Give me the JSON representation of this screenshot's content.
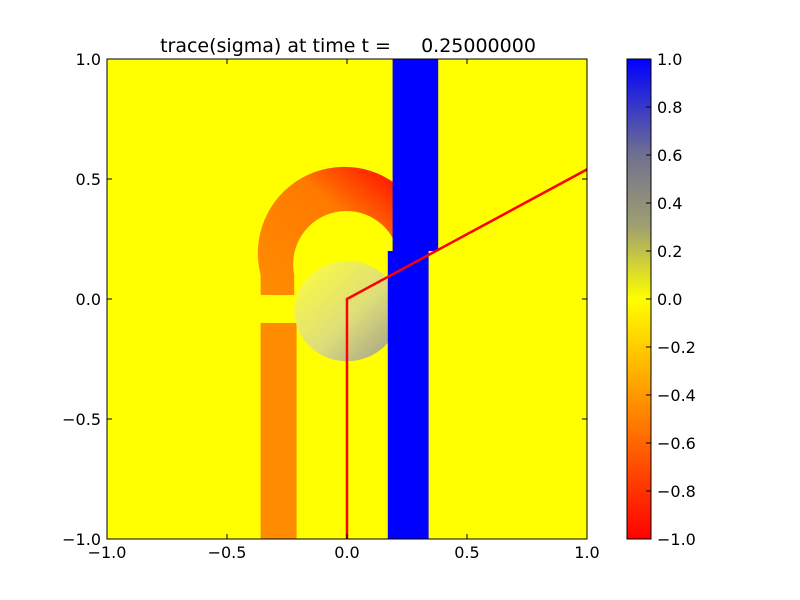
{
  "chart_data": {
    "type": "heatmap",
    "title": "trace(sigma) at time t =     0.25000000",
    "xlabel": "",
    "ylabel": "",
    "xlim": [
      -1.0,
      1.0
    ],
    "ylim": [
      -1.0,
      1.0
    ],
    "x_ticks": [
      "−1.0",
      "−0.5",
      "0.0",
      "0.5",
      "1.0"
    ],
    "x_tick_values": [
      -1.0,
      -0.5,
      0.0,
      0.5,
      1.0
    ],
    "y_ticks": [
      "−1.0",
      "−0.5",
      "0.0",
      "0.5",
      "1.0"
    ],
    "y_tick_values": [
      -1.0,
      -0.5,
      0.0,
      0.5,
      1.0
    ],
    "grid": false,
    "background_value": 0.0,
    "regions": [
      {
        "shape": "vertical-band",
        "value": 1.0,
        "x_range": [
          0.19,
          0.38
        ],
        "y_range": [
          0.2,
          1.0
        ]
      },
      {
        "shape": "vertical-band",
        "value": 1.0,
        "x_range": [
          0.17,
          0.34
        ],
        "y_range": [
          -1.0,
          0.2
        ]
      },
      {
        "shape": "vertical-band",
        "value": -0.5,
        "x_range": [
          -0.36,
          -0.21
        ],
        "y_range": [
          -1.0,
          -0.1
        ]
      },
      {
        "shape": "arc-band",
        "value": -0.55,
        "center": [
          0.0,
          0.1
        ],
        "radius_range": [
          0.22,
          0.36
        ],
        "min_value_end": -1.0
      },
      {
        "shape": "disc",
        "value": 0.15,
        "center": [
          0.0,
          -0.05
        ],
        "radius": 0.22
      }
    ],
    "overlay_line": {
      "color": "#ff0000",
      "points": [
        [
          0.0,
          -1.0
        ],
        [
          0.0,
          0.0
        ],
        [
          1.0,
          0.54
        ]
      ]
    },
    "colorbar": {
      "range": [
        -1.0,
        1.0
      ],
      "ticks": [
        "1.0",
        "0.8",
        "0.6",
        "0.4",
        "0.2",
        "0.0",
        "−0.2",
        "−0.4",
        "−0.6",
        "−0.8",
        "−1.0"
      ],
      "tick_values": [
        1.0,
        0.8,
        0.6,
        0.4,
        0.2,
        0.0,
        -0.2,
        -0.4,
        -0.6,
        -0.8,
        -1.0
      ],
      "colors": {
        "-1.0": "#ff0000",
        "-0.5": "#ff7f00",
        "0.0": "#ffff00",
        "0.3": "#a0a070",
        "0.6": "#707090",
        "1.0": "#0000ff"
      }
    }
  }
}
